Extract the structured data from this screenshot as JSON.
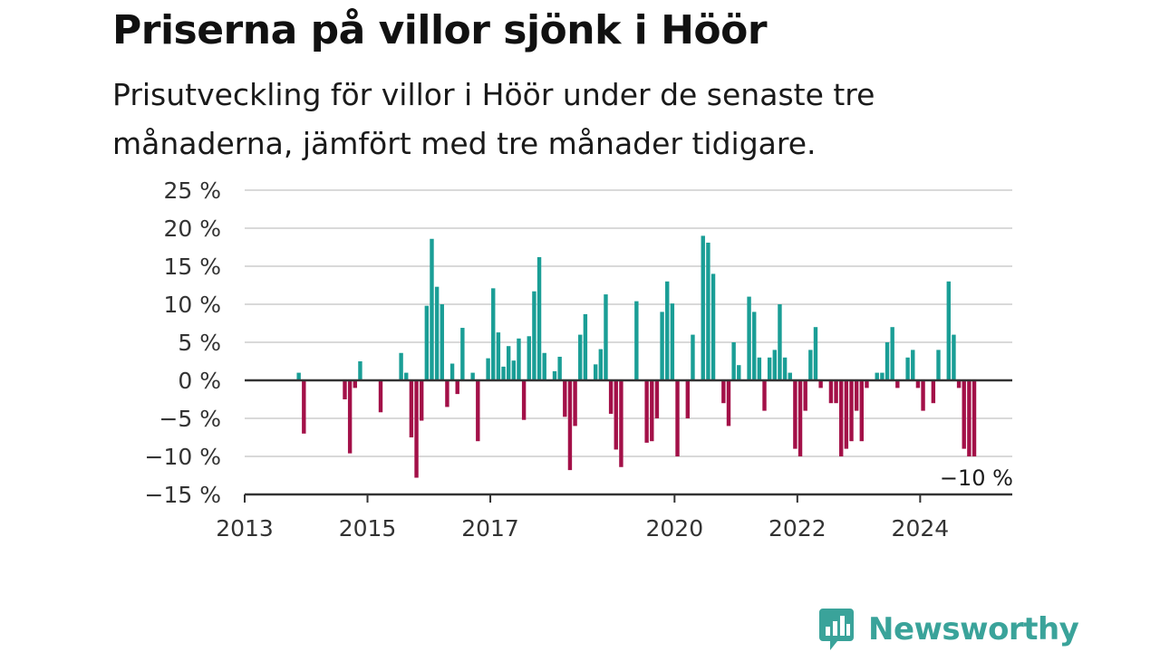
{
  "header": {
    "title": "Priserna på villor sjönk i Höör",
    "subtitle": "Prisutveckling för villor i Höör under de senaste tre månaderna, jämfört med tre månader tidigare."
  },
  "brand": {
    "name": "Newsworthy",
    "color": "#3aa39a"
  },
  "colors": {
    "positive": "#1a9e96",
    "negative": "#a31048",
    "grid": "#d9d9d9",
    "axis": "#333333"
  },
  "chart_data": {
    "type": "bar",
    "x_unit": "month",
    "x_start": "2013-01",
    "x_end": "2025-07",
    "xticks": [
      "2013",
      "2015",
      "2017",
      "2020",
      "2022",
      "2024"
    ],
    "yticks": [
      "25 %",
      "20 %",
      "15 %",
      "10 %",
      "5 %",
      "0 %",
      "−5 %",
      "−10 %",
      "−15 %"
    ],
    "ylim": [
      -15,
      25
    ],
    "grid": true,
    "last_label": "−10 %",
    "bars": [
      {
        "month": "2013-11",
        "value": 1
      },
      {
        "month": "2013-12",
        "value": -7
      },
      {
        "month": "2014-08",
        "value": -2.5
      },
      {
        "month": "2014-09",
        "value": -9.6
      },
      {
        "month": "2014-10",
        "value": -1
      },
      {
        "month": "2014-11",
        "value": 2.5
      },
      {
        "month": "2015-03",
        "value": -4.2
      },
      {
        "month": "2015-07",
        "value": 3.6
      },
      {
        "month": "2015-08",
        "value": 1
      },
      {
        "month": "2015-09",
        "value": -7.5
      },
      {
        "month": "2015-10",
        "value": -12.8
      },
      {
        "month": "2015-11",
        "value": -5.3
      },
      {
        "month": "2015-12",
        "value": 9.8
      },
      {
        "month": "2016-01",
        "value": 18.6
      },
      {
        "month": "2016-02",
        "value": 12.3
      },
      {
        "month": "2016-03",
        "value": 10
      },
      {
        "month": "2016-04",
        "value": -3.5
      },
      {
        "month": "2016-05",
        "value": 2.2
      },
      {
        "month": "2016-06",
        "value": -1.8
      },
      {
        "month": "2016-07",
        "value": 6.9
      },
      {
        "month": "2016-09",
        "value": 1
      },
      {
        "month": "2016-10",
        "value": -8
      },
      {
        "month": "2016-12",
        "value": 2.9
      },
      {
        "month": "2017-01",
        "value": 12.1
      },
      {
        "month": "2017-02",
        "value": 6.3
      },
      {
        "month": "2017-03",
        "value": 1.8
      },
      {
        "month": "2017-04",
        "value": 4.5
      },
      {
        "month": "2017-05",
        "value": 2.6
      },
      {
        "month": "2017-06",
        "value": 5.5
      },
      {
        "month": "2017-07",
        "value": -5.2
      },
      {
        "month": "2017-08",
        "value": 5.8
      },
      {
        "month": "2017-09",
        "value": 11.7
      },
      {
        "month": "2017-10",
        "value": 16.2
      },
      {
        "month": "2017-11",
        "value": 3.6
      },
      {
        "month": "2018-01",
        "value": 1.2
      },
      {
        "month": "2018-02",
        "value": 3.1
      },
      {
        "month": "2018-03",
        "value": -4.8
      },
      {
        "month": "2018-04",
        "value": -11.8
      },
      {
        "month": "2018-05",
        "value": -6
      },
      {
        "month": "2018-06",
        "value": 6
      },
      {
        "month": "2018-07",
        "value": 8.7
      },
      {
        "month": "2018-09",
        "value": 2.1
      },
      {
        "month": "2018-10",
        "value": 4.1
      },
      {
        "month": "2018-11",
        "value": 11.3
      },
      {
        "month": "2018-12",
        "value": -4.4
      },
      {
        "month": "2019-01",
        "value": -9.1
      },
      {
        "month": "2019-02",
        "value": -11.4
      },
      {
        "month": "2019-05",
        "value": 10.4
      },
      {
        "month": "2019-07",
        "value": -8.2
      },
      {
        "month": "2019-08",
        "value": -8
      },
      {
        "month": "2019-09",
        "value": -5
      },
      {
        "month": "2019-10",
        "value": 9
      },
      {
        "month": "2019-11",
        "value": 13
      },
      {
        "month": "2019-12",
        "value": 10.1
      },
      {
        "month": "2020-01",
        "value": -10
      },
      {
        "month": "2020-03",
        "value": -5
      },
      {
        "month": "2020-04",
        "value": 6
      },
      {
        "month": "2020-06",
        "value": 19
      },
      {
        "month": "2020-07",
        "value": 18.1
      },
      {
        "month": "2020-08",
        "value": 14
      },
      {
        "month": "2020-10",
        "value": -3
      },
      {
        "month": "2020-11",
        "value": -6
      },
      {
        "month": "2020-12",
        "value": 5
      },
      {
        "month": "2021-01",
        "value": 2
      },
      {
        "month": "2021-03",
        "value": 11
      },
      {
        "month": "2021-04",
        "value": 9
      },
      {
        "month": "2021-05",
        "value": 3
      },
      {
        "month": "2021-06",
        "value": -4
      },
      {
        "month": "2021-07",
        "value": 3
      },
      {
        "month": "2021-08",
        "value": 4
      },
      {
        "month": "2021-09",
        "value": 10
      },
      {
        "month": "2021-10",
        "value": 3
      },
      {
        "month": "2021-11",
        "value": 1
      },
      {
        "month": "2021-12",
        "value": -9
      },
      {
        "month": "2022-01",
        "value": -10
      },
      {
        "month": "2022-02",
        "value": -4
      },
      {
        "month": "2022-03",
        "value": 4
      },
      {
        "month": "2022-04",
        "value": 7
      },
      {
        "month": "2022-05",
        "value": -1
      },
      {
        "month": "2022-07",
        "value": -3
      },
      {
        "month": "2022-08",
        "value": -3
      },
      {
        "month": "2022-09",
        "value": -10
      },
      {
        "month": "2022-10",
        "value": -9
      },
      {
        "month": "2022-11",
        "value": -8
      },
      {
        "month": "2022-12",
        "value": -4
      },
      {
        "month": "2023-01",
        "value": -8
      },
      {
        "month": "2023-02",
        "value": -1
      },
      {
        "month": "2023-04",
        "value": 1
      },
      {
        "month": "2023-05",
        "value": 1
      },
      {
        "month": "2023-06",
        "value": 5
      },
      {
        "month": "2023-07",
        "value": 7
      },
      {
        "month": "2023-08",
        "value": -1
      },
      {
        "month": "2023-10",
        "value": 3
      },
      {
        "month": "2023-11",
        "value": 4
      },
      {
        "month": "2023-12",
        "value": -1
      },
      {
        "month": "2024-01",
        "value": -4
      },
      {
        "month": "2024-03",
        "value": -3
      },
      {
        "month": "2024-04",
        "value": 4
      },
      {
        "month": "2024-06",
        "value": 13
      },
      {
        "month": "2024-07",
        "value": 6
      },
      {
        "month": "2024-08",
        "value": -1
      },
      {
        "month": "2024-09",
        "value": -9
      },
      {
        "month": "2024-10",
        "value": -10
      },
      {
        "month": "2024-11",
        "value": -10
      }
    ]
  }
}
